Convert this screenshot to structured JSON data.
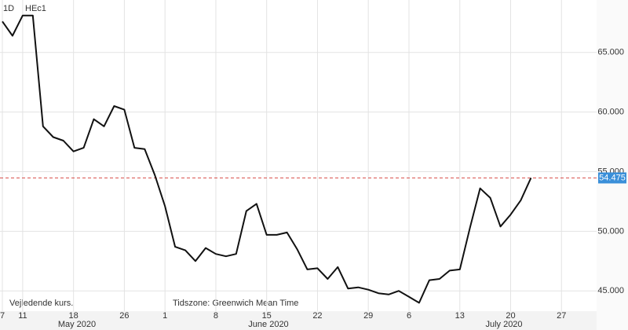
{
  "chart_data": {
    "type": "line",
    "interval": "1D",
    "symbol": "HEc1",
    "categories": [
      "7",
      null,
      "11",
      null,
      null,
      null,
      null,
      "18",
      null,
      null,
      null,
      null,
      "26",
      null,
      null,
      null,
      "1",
      null,
      null,
      null,
      null,
      "8",
      null,
      null,
      null,
      null,
      "15",
      null,
      null,
      null,
      null,
      "22",
      null,
      null,
      null,
      null,
      "29",
      null,
      null,
      null,
      "6",
      null,
      null,
      null,
      null,
      "13",
      null,
      null,
      null,
      null,
      "20",
      null,
      null,
      null,
      null,
      "27"
    ],
    "months": [
      "May 2020",
      "June 2020",
      "July 2020"
    ],
    "series": [
      {
        "name": "HEc1",
        "color": "#111111",
        "values": [
          67.6,
          66.4,
          68.1,
          68.1,
          58.8,
          57.9,
          57.6,
          56.7,
          57.0,
          59.4,
          58.8,
          60.5,
          60.2,
          57.0,
          56.9,
          54.7,
          52.1,
          48.7,
          48.4,
          47.5,
          48.6,
          48.1,
          47.9,
          48.1,
          51.7,
          52.3,
          49.7,
          49.7,
          49.9,
          48.5,
          46.8,
          46.9,
          46.0,
          47.0,
          45.2,
          45.3,
          45.1,
          44.8,
          44.7,
          45.0,
          44.5,
          44.0,
          45.9,
          46.0,
          46.7,
          46.8,
          50.3,
          53.6,
          52.8,
          50.4,
          51.4,
          52.6,
          54.475,
          null,
          null,
          null
        ]
      }
    ],
    "ylim": [
      43.3,
      69.4
    ],
    "yticks": [
      {
        "value": 45,
        "label": "45.000"
      },
      {
        "value": 50,
        "label": "50.000"
      },
      {
        "value": 55,
        "label": "55.000"
      },
      {
        "value": 60,
        "label": "60.000"
      },
      {
        "value": 65,
        "label": "65.000"
      }
    ],
    "grid": true,
    "reference_line": {
      "value": 54.475,
      "color": "#d9534f",
      "label_color": "#3a8fd9"
    },
    "footer_left": "Vejledende kurs.",
    "footer_timezone": "Tidszone: Greenwich Mean Time"
  }
}
